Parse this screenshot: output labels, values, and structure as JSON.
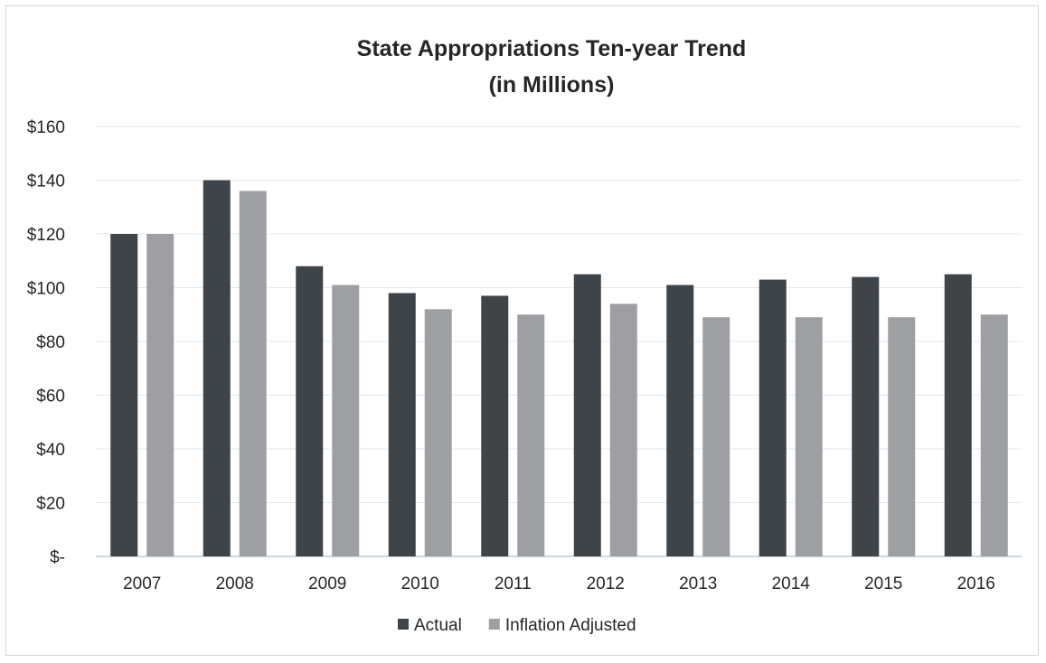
{
  "chart_data": {
    "type": "bar",
    "title": "State Appropriations Ten-year Trend",
    "subtitle": "(in Millions)",
    "categories": [
      "2007",
      "2008",
      "2009",
      "2010",
      "2011",
      "2012",
      "2013",
      "2014",
      "2015",
      "2016"
    ],
    "series": [
      {
        "name": "Actual",
        "color": "#3f4449",
        "values": [
          120,
          140,
          108,
          98,
          97,
          105,
          101,
          103,
          104,
          105
        ]
      },
      {
        "name": "Inflation Adjusted",
        "color": "#9d9fa2",
        "values": [
          120,
          136,
          101,
          92,
          90,
          94,
          89,
          89,
          89,
          90
        ]
      }
    ],
    "ylim": [
      0,
      160
    ],
    "yticks": [
      0,
      20,
      40,
      60,
      80,
      100,
      120,
      140,
      160
    ],
    "ytick_labels": [
      "$-",
      "$20",
      "$40",
      "$60",
      "$80",
      "$100",
      "$120",
      "$140",
      "$160"
    ],
    "xlabel": "",
    "ylabel": "",
    "grid": true,
    "legend_position": "bottom-center"
  }
}
